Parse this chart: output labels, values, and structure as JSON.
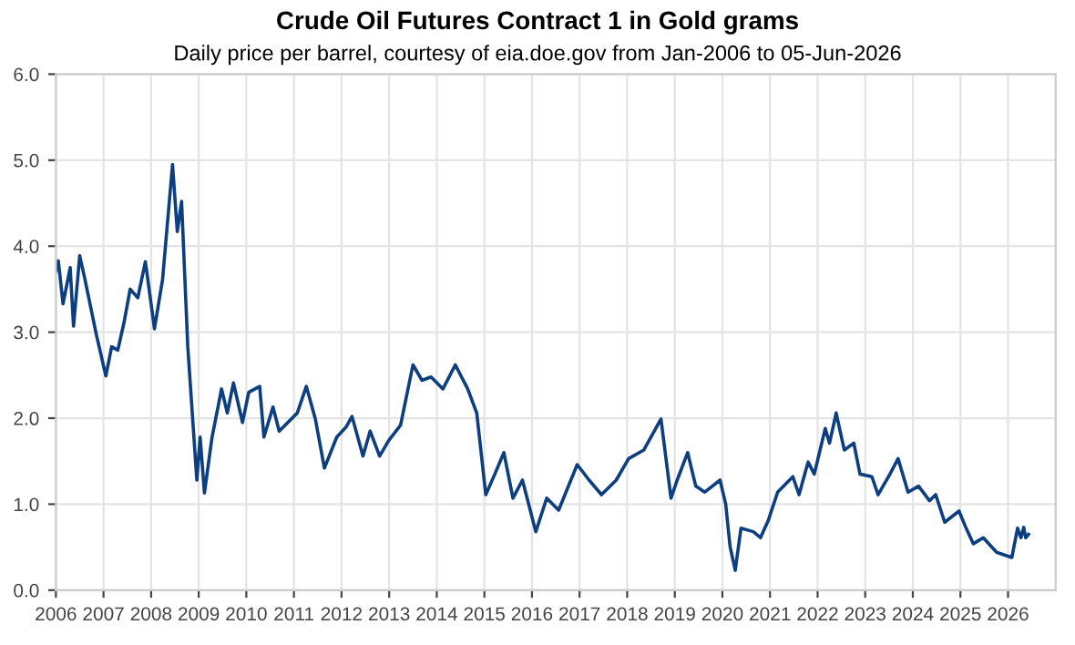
{
  "chart_data": {
    "type": "line",
    "title": "Crude Oil Futures Contract 1 in Gold grams",
    "subtitle": "Daily price per barrel, courtesy of eia.doe.gov from Jan-2006 to 05-Jun-2026",
    "x": [
      2006.0,
      2006.05,
      2006.15,
      2006.3,
      2006.37,
      2006.5,
      2006.6,
      2006.85,
      2007.05,
      2007.17,
      2007.3,
      2007.43,
      2007.56,
      2007.72,
      2007.88,
      2008.07,
      2008.24,
      2008.45,
      2008.55,
      2008.64,
      2008.77,
      2008.96,
      2009.03,
      2009.12,
      2009.28,
      2009.48,
      2009.6,
      2009.73,
      2009.92,
      2010.05,
      2010.28,
      2010.37,
      2010.56,
      2010.69,
      2011.07,
      2011.26,
      2011.45,
      2011.64,
      2011.9,
      2012.1,
      2012.22,
      2012.45,
      2012.6,
      2012.8,
      2012.99,
      2013.24,
      2013.5,
      2013.69,
      2013.88,
      2014.13,
      2014.39,
      2014.65,
      2014.84,
      2015.03,
      2015.22,
      2015.41,
      2015.6,
      2015.8,
      2016.08,
      2016.31,
      2016.56,
      2016.95,
      2017.2,
      2017.46,
      2017.77,
      2018.03,
      2018.35,
      2018.71,
      2018.92,
      2019.05,
      2019.27,
      2019.44,
      2019.63,
      2019.95,
      2020.07,
      2020.16,
      2020.27,
      2020.39,
      2020.65,
      2020.8,
      2020.97,
      2021.16,
      2021.48,
      2021.61,
      2021.8,
      2021.93,
      2022.16,
      2022.25,
      2022.39,
      2022.56,
      2022.76,
      2022.89,
      2023.14,
      2023.27,
      2023.52,
      2023.69,
      2023.9,
      2024.12,
      2024.35,
      2024.48,
      2024.67,
      2024.97,
      2025.12,
      2025.27,
      2025.48,
      2025.76,
      2026.08,
      2026.2,
      2026.27,
      2026.33,
      2026.37,
      2026.43
    ],
    "series": [
      {
        "color": "#0d3f80",
        "values": [
          3.71,
          3.83,
          3.33,
          3.75,
          3.07,
          3.89,
          3.64,
          2.97,
          2.49,
          2.83,
          2.79,
          3.11,
          3.5,
          3.4,
          3.82,
          3.04,
          3.61,
          4.95,
          4.17,
          4.52,
          2.83,
          1.28,
          1.78,
          1.13,
          1.78,
          2.34,
          2.06,
          2.41,
          1.95,
          2.3,
          2.37,
          1.78,
          2.13,
          1.85,
          2.06,
          2.37,
          1.99,
          1.42,
          1.78,
          1.9,
          2.02,
          1.56,
          1.85,
          1.56,
          1.74,
          1.92,
          2.62,
          2.44,
          2.48,
          2.34,
          2.62,
          2.34,
          2.06,
          1.11,
          1.35,
          1.6,
          1.07,
          1.28,
          0.68,
          1.07,
          0.93,
          1.46,
          1.28,
          1.11,
          1.28,
          1.53,
          1.63,
          1.99,
          1.07,
          1.28,
          1.6,
          1.21,
          1.14,
          1.28,
          1.0,
          0.51,
          0.23,
          0.72,
          0.68,
          0.61,
          0.82,
          1.14,
          1.32,
          1.11,
          1.49,
          1.35,
          1.88,
          1.71,
          2.06,
          1.63,
          1.71,
          1.35,
          1.32,
          1.11,
          1.35,
          1.53,
          1.14,
          1.21,
          1.04,
          1.11,
          0.79,
          0.92,
          0.72,
          0.54,
          0.61,
          0.44,
          0.38,
          0.72,
          0.61,
          0.73,
          0.61,
          0.65
        ]
      }
    ],
    "xlim": [
      2006,
      2027
    ],
    "xticks": [
      2006,
      2007,
      2008,
      2009,
      2010,
      2011,
      2012,
      2013,
      2014,
      2015,
      2016,
      2017,
      2018,
      2019,
      2020,
      2021,
      2022,
      2023,
      2024,
      2025,
      2026
    ],
    "ylim": [
      0,
      6
    ],
    "yticks": [
      {
        "value": 0,
        "label": "0.0"
      },
      {
        "value": 1,
        "label": "1.0"
      },
      {
        "value": 2,
        "label": "2.0"
      },
      {
        "value": 3,
        "label": "3.0"
      },
      {
        "value": 4,
        "label": "4.0"
      },
      {
        "value": 5,
        "label": "5.0"
      },
      {
        "value": 6,
        "label": "6.0"
      }
    ],
    "grid": true,
    "line_style": "solid",
    "marker": "none"
  }
}
